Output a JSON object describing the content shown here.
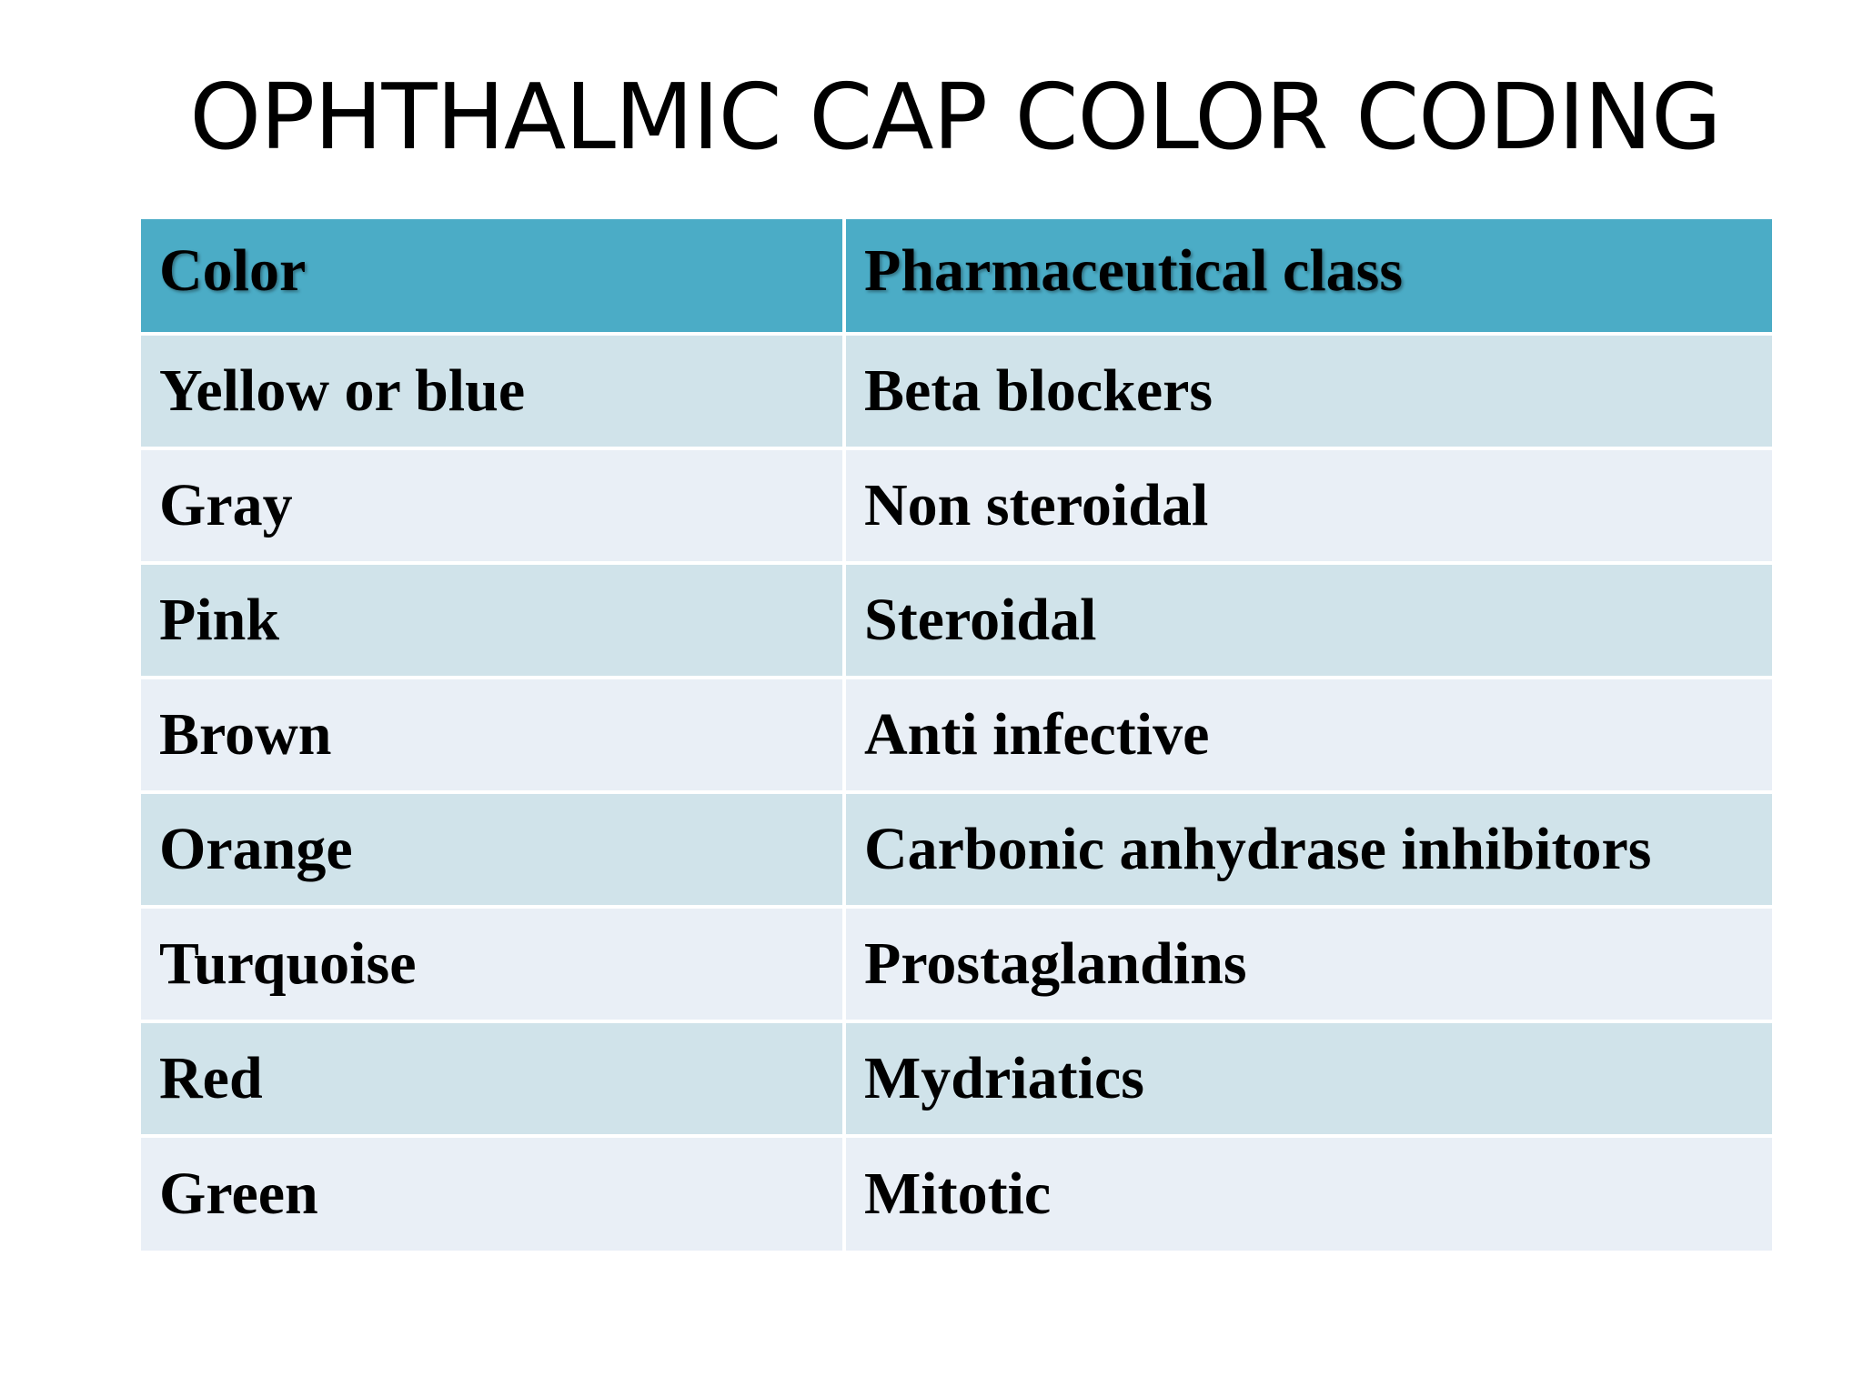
{
  "title": "OPHTHALMIC CAP COLOR CODING",
  "table": {
    "headers": {
      "color": "Color",
      "class": "Pharmaceutical  class"
    },
    "rows": [
      {
        "color": "Yellow or blue",
        "class": "Beta blockers"
      },
      {
        "color": "Gray",
        "class": "Non steroidal"
      },
      {
        "color": "Pink",
        "class": "Steroidal"
      },
      {
        "color": "Brown",
        "class": "Anti infective"
      },
      {
        "color": "Orange",
        "class": "Carbonic anhydrase inhibitors"
      },
      {
        "color": "Turquoise",
        "class": "Prostaglandins"
      },
      {
        "color": "Red",
        "class": "Mydriatics"
      },
      {
        "color": "Green",
        "class": "Mitotic"
      }
    ]
  },
  "colors": {
    "header_bg": "#4bacc6",
    "row_odd_bg": "#d0e3ea",
    "row_even_bg": "#e9eff6"
  }
}
